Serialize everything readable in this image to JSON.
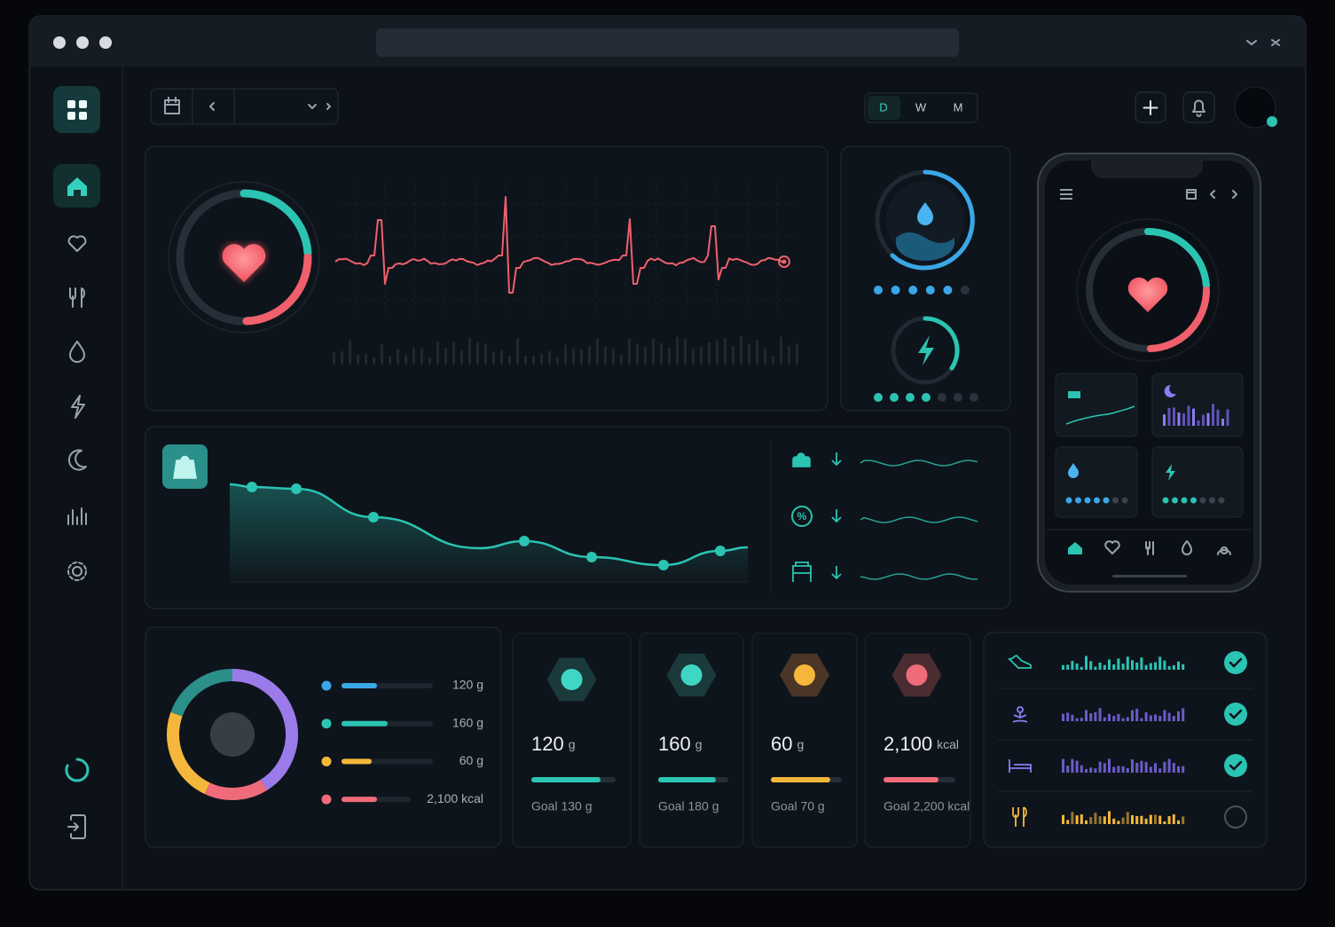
{
  "period_tabs": [
    "D",
    "W",
    "M"
  ],
  "macro_list": [
    "120 g",
    "160 g",
    "60 g",
    "2,100 kcal"
  ],
  "macro_cards": [
    {
      "amount": "120",
      "unit": "g",
      "goal": "Goal 130 g"
    },
    {
      "amount": "160",
      "unit": "g",
      "goal": "Goal 180 g"
    },
    {
      "amount": "60",
      "unit": "g",
      "goal": "Goal 70 g"
    },
    {
      "amount": "2,100",
      "unit": "kcal",
      "goal": "Goal 2,200 kcal"
    }
  ]
}
